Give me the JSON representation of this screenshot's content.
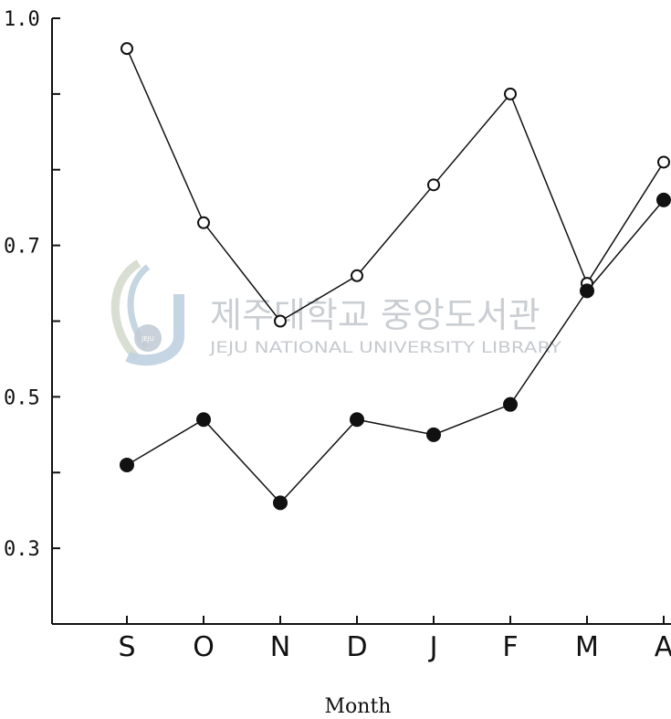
{
  "chart_data": {
    "type": "line",
    "title": "",
    "xlabel": "Month",
    "ylabel": "",
    "categories": [
      "S",
      "O",
      "N",
      "D",
      "J",
      "F",
      "M",
      "A"
    ],
    "ylim": [
      0.2,
      1.0
    ],
    "yticks": [
      0.3,
      0.4,
      0.5,
      0.6,
      0.7,
      0.8,
      0.9,
      1.0
    ],
    "ytick_labels": [
      "0.3",
      "",
      "0.5",
      "",
      "0.7",
      "",
      "",
      "1.0"
    ],
    "grid": false,
    "legend": "none",
    "series": [
      {
        "marker": "open-circle",
        "values": [
          0.96,
          0.73,
          0.6,
          0.66,
          0.78,
          0.9,
          0.65,
          0.81
        ]
      },
      {
        "marker": "filled-circle",
        "values": [
          0.41,
          0.47,
          0.36,
          0.47,
          0.45,
          0.49,
          0.64,
          0.76
        ]
      }
    ]
  },
  "watermark": {
    "korean": "제주대학교 중앙도서관",
    "english": "JEJU NATIONAL UNIVERSITY LIBRARY",
    "badge": "JEJU"
  }
}
